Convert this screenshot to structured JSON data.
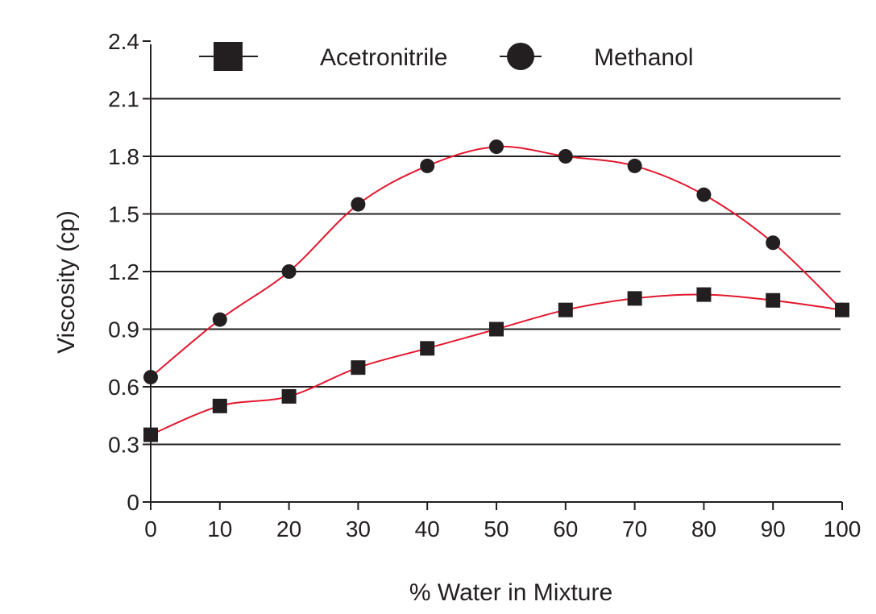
{
  "chart_data": {
    "type": "line",
    "title": "",
    "xlabel": "% Water in Mixture",
    "ylabel": "Viscosity (cp)",
    "xlim": [
      0,
      100
    ],
    "ylim": [
      0,
      2.4
    ],
    "x_ticks": [
      0,
      10,
      20,
      30,
      40,
      50,
      60,
      70,
      80,
      90,
      100
    ],
    "y_ticks": [
      0,
      0.3,
      0.6,
      0.9,
      1.2,
      1.5,
      1.8,
      2.1,
      2.4
    ],
    "y_tick_labels": [
      "0",
      "0.3",
      "0.6",
      "0.9",
      "1.2",
      "1.5",
      "1.8",
      "2.1",
      "2.4"
    ],
    "grid": "horizontal",
    "legend_position": "top",
    "line_color": "#e2182f",
    "marker_color": "#231f20",
    "series": [
      {
        "name": "Acetronitrile",
        "marker": "square",
        "x": [
          0,
          10,
          20,
          30,
          40,
          50,
          60,
          70,
          80,
          90,
          100
        ],
        "values": [
          0.35,
          0.5,
          0.55,
          0.7,
          0.8,
          0.9,
          1.0,
          1.06,
          1.08,
          1.05,
          1.0
        ]
      },
      {
        "name": "Methanol",
        "marker": "circle",
        "x": [
          0,
          10,
          20,
          30,
          40,
          50,
          60,
          70,
          80,
          90,
          100
        ],
        "values": [
          0.65,
          0.95,
          1.2,
          1.55,
          1.75,
          1.85,
          1.8,
          1.75,
          1.6,
          1.35,
          1.0
        ]
      }
    ]
  }
}
